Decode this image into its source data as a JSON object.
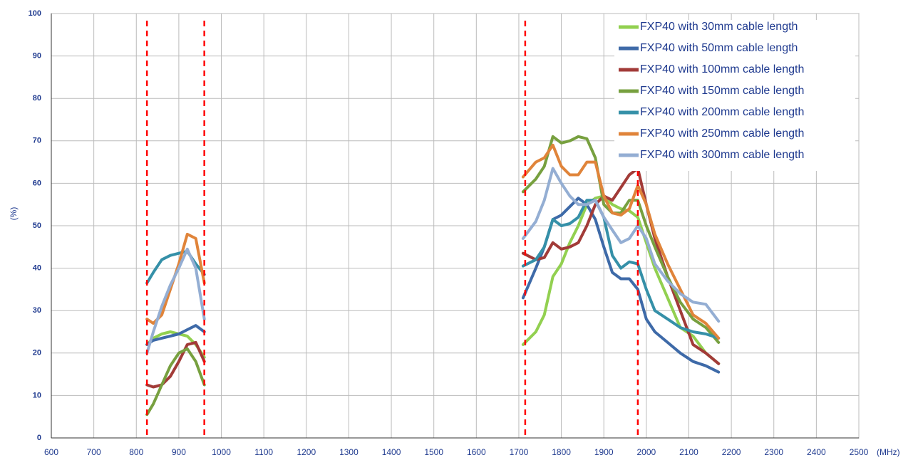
{
  "chart_data": {
    "type": "line",
    "y_label": "(%)",
    "x_unit": "(MHz)",
    "xlim": [
      600,
      2500
    ],
    "xticks": [
      600,
      700,
      800,
      900,
      1000,
      1100,
      1200,
      1300,
      1400,
      1500,
      1600,
      1700,
      1800,
      1900,
      2000,
      2100,
      2200,
      2300,
      2400,
      2500
    ],
    "ylim": [
      0,
      100
    ],
    "yticks": [
      0,
      10,
      20,
      30,
      40,
      50,
      60,
      70,
      80,
      90,
      100
    ],
    "grid": true,
    "legend": "upper right",
    "vlines": [
      825,
      960,
      1715,
      1980
    ],
    "vline_color": "#ff0000",
    "x": [
      825,
      840,
      860,
      880,
      900,
      920,
      940,
      960,
      null,
      1710,
      1740,
      1760,
      1780,
      1800,
      1820,
      1840,
      1860,
      1880,
      1900,
      1920,
      1940,
      1960,
      1980,
      2000,
      2020,
      2050,
      2080,
      2110,
      2140,
      2170
    ],
    "series": [
      {
        "name": "FXP40 with 30mm cable length",
        "color": "#92d050",
        "values": [
          22,
          23.5,
          24.5,
          25,
          24.5,
          24,
          22,
          19,
          null,
          22,
          25,
          29,
          38,
          41,
          46,
          50,
          55,
          56.5,
          57,
          55,
          54,
          53.5,
          52,
          46,
          40,
          33,
          26,
          24,
          20,
          17.5
        ]
      },
      {
        "name": "FXP40 with 50mm cable length",
        "color": "#3e6aa8",
        "values": [
          22,
          23,
          23.5,
          24,
          24.5,
          25.5,
          26.5,
          25,
          null,
          33,
          40,
          45,
          51.5,
          52.5,
          54.5,
          56.5,
          55,
          51.5,
          45,
          39,
          37.5,
          37.5,
          35,
          28,
          25,
          22.5,
          20,
          18,
          17,
          15.5
        ]
      },
      {
        "name": "FXP40 with 100mm cable length",
        "color": "#a23b38",
        "values": [
          12.5,
          12,
          12.5,
          14.5,
          18,
          22,
          22.5,
          18,
          null,
          43.5,
          42,
          42.5,
          46,
          44.5,
          45,
          46,
          50,
          55,
          57,
          56,
          59,
          62,
          63.5,
          55,
          47,
          38,
          30,
          22,
          20,
          17.5
        ]
      },
      {
        "name": "FXP40 with 150mm cable length",
        "color": "#77a03f",
        "values": [
          5.5,
          8,
          12.5,
          17,
          20,
          21,
          18,
          12.5,
          null,
          58,
          61,
          64,
          71,
          69.5,
          70,
          71,
          70.5,
          66,
          55,
          53,
          53,
          56,
          56,
          50,
          45,
          38,
          32,
          28,
          26,
          22.5
        ]
      },
      {
        "name": "FXP40 with 200mm cable length",
        "color": "#3590a8",
        "values": [
          36.5,
          39,
          42,
          43,
          43.5,
          44,
          41,
          38.5,
          null,
          40.5,
          42,
          45,
          51.5,
          50,
          50.5,
          52,
          56,
          56,
          52,
          43,
          40,
          41.5,
          41,
          35,
          30,
          28,
          26,
          25,
          24.5,
          23.5
        ]
      },
      {
        "name": "FXP40 with 250mm cable length",
        "color": "#e0843a",
        "values": [
          28,
          27,
          29,
          35,
          41,
          48,
          47,
          36.5,
          null,
          61.5,
          65,
          66,
          69,
          64,
          62,
          62,
          65,
          65,
          57,
          53,
          52.5,
          54,
          59.5,
          55,
          48,
          41,
          35,
          29,
          27,
          23.5
        ]
      },
      {
        "name": "FXP40 with 300mm cable length",
        "color": "#94aed3",
        "values": [
          20,
          25,
          31,
          36,
          40,
          44.5,
          40,
          28,
          null,
          47,
          51,
          56,
          63.5,
          60,
          57,
          55,
          55,
          56,
          52,
          49,
          46,
          47,
          50,
          47,
          41,
          37,
          34,
          32,
          31.5,
          27.5
        ]
      }
    ]
  }
}
